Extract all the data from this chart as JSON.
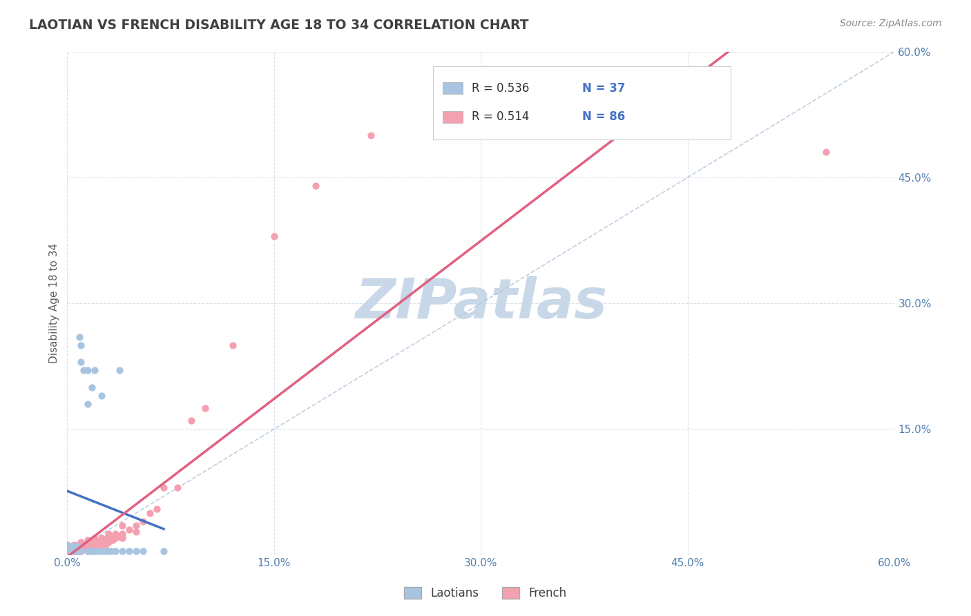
{
  "title": "LAOTIAN VS FRENCH DISABILITY AGE 18 TO 34 CORRELATION CHART",
  "source_text": "Source: ZipAtlas.com",
  "ylabel": "Disability Age 18 to 34",
  "xlim": [
    0.0,
    0.6
  ],
  "ylim": [
    0.0,
    0.6
  ],
  "xtick_labels": [
    "0.0%",
    "15.0%",
    "30.0%",
    "45.0%",
    "60.0%"
  ],
  "xtick_values": [
    0.0,
    0.15,
    0.3,
    0.45,
    0.6
  ],
  "ytick_labels": [
    "15.0%",
    "30.0%",
    "45.0%",
    "60.0%"
  ],
  "ytick_values": [
    0.15,
    0.3,
    0.45,
    0.6
  ],
  "laotian_color": "#a8c4e0",
  "french_color": "#f4a0b0",
  "laotian_line_color": "#4472c4",
  "french_line_color": "#e06080",
  "watermark_color": "#c8d8e8",
  "background_color": "#ffffff",
  "grid_color": "#d0dce8",
  "title_color": "#404040",
  "axis_label_color": "#606060",
  "tick_label_color": "#5080b0",
  "legend_text_color_R": "#333333",
  "legend_text_color_N": "#4472c4",
  "lao_x": [
    0.0,
    0.0,
    0.0,
    0.003,
    0.003,
    0.005,
    0.005,
    0.006,
    0.007,
    0.008,
    0.008,
    0.009,
    0.01,
    0.01,
    0.01,
    0.012,
    0.015,
    0.015,
    0.015,
    0.016,
    0.018,
    0.018,
    0.02,
    0.02,
    0.022,
    0.025,
    0.025,
    0.028,
    0.03,
    0.032,
    0.035,
    0.038,
    0.04,
    0.045,
    0.05,
    0.055,
    0.07
  ],
  "lao_y": [
    0.005,
    0.008,
    0.012,
    0.005,
    0.01,
    0.005,
    0.01,
    0.005,
    0.005,
    0.005,
    0.01,
    0.26,
    0.005,
    0.25,
    0.23,
    0.22,
    0.005,
    0.18,
    0.22,
    0.005,
    0.005,
    0.2,
    0.005,
    0.22,
    0.005,
    0.005,
    0.19,
    0.005,
    0.005,
    0.005,
    0.005,
    0.22,
    0.005,
    0.005,
    0.005,
    0.005,
    0.005
  ],
  "fr_x": [
    0.0,
    0.0,
    0.0,
    0.0,
    0.003,
    0.003,
    0.003,
    0.004,
    0.005,
    0.005,
    0.005,
    0.005,
    0.005,
    0.006,
    0.006,
    0.007,
    0.007,
    0.007,
    0.008,
    0.008,
    0.008,
    0.008,
    0.009,
    0.009,
    0.01,
    0.01,
    0.01,
    0.01,
    0.01,
    0.012,
    0.012,
    0.012,
    0.013,
    0.013,
    0.014,
    0.015,
    0.015,
    0.015,
    0.015,
    0.016,
    0.017,
    0.018,
    0.018,
    0.019,
    0.02,
    0.02,
    0.02,
    0.02,
    0.022,
    0.022,
    0.023,
    0.024,
    0.025,
    0.025,
    0.025,
    0.026,
    0.027,
    0.028,
    0.029,
    0.03,
    0.03,
    0.03,
    0.032,
    0.033,
    0.035,
    0.035,
    0.038,
    0.04,
    0.04,
    0.04,
    0.04,
    0.045,
    0.05,
    0.05,
    0.055,
    0.06,
    0.065,
    0.07,
    0.08,
    0.09,
    0.1,
    0.12,
    0.15,
    0.18,
    0.22,
    0.55
  ],
  "fr_y": [
    0.005,
    0.007,
    0.008,
    0.012,
    0.005,
    0.006,
    0.01,
    0.008,
    0.005,
    0.005,
    0.006,
    0.009,
    0.012,
    0.005,
    0.01,
    0.005,
    0.008,
    0.01,
    0.005,
    0.006,
    0.01,
    0.012,
    0.005,
    0.01,
    0.005,
    0.006,
    0.008,
    0.01,
    0.015,
    0.006,
    0.008,
    0.012,
    0.008,
    0.012,
    0.01,
    0.005,
    0.008,
    0.012,
    0.018,
    0.01,
    0.012,
    0.008,
    0.015,
    0.01,
    0.008,
    0.01,
    0.015,
    0.02,
    0.01,
    0.015,
    0.012,
    0.015,
    0.01,
    0.015,
    0.02,
    0.012,
    0.018,
    0.012,
    0.02,
    0.015,
    0.02,
    0.025,
    0.02,
    0.018,
    0.02,
    0.025,
    0.022,
    0.02,
    0.022,
    0.025,
    0.035,
    0.03,
    0.028,
    0.035,
    0.04,
    0.05,
    0.055,
    0.08,
    0.08,
    0.16,
    0.175,
    0.25,
    0.38,
    0.44,
    0.5,
    0.48
  ]
}
